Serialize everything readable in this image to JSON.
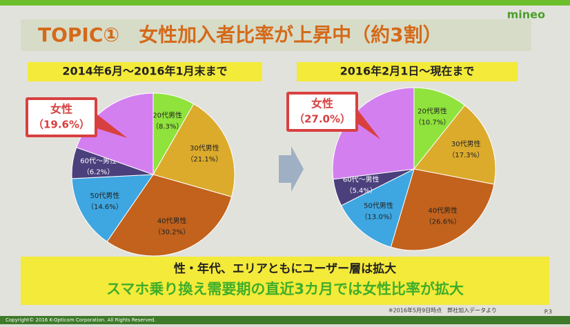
{
  "brand": "mineo",
  "title": "TOPIC①　女性加入者比率が上昇中（約3割）",
  "chart_data": [
    {
      "type": "pie",
      "subtitle": "2014年6月～2016年1月末まで",
      "categories": [
        "20代男性",
        "30代男性",
        "40代男性",
        "50代男性",
        "60代～男性",
        "女性"
      ],
      "values": [
        8.3,
        21.1,
        30.2,
        14.6,
        6.2,
        19.6
      ],
      "value_labels": [
        "（8.3%）",
        "（21.1%）",
        "（30.2%）",
        "（14.6%）",
        "（6.2%）",
        "（19.6%）"
      ],
      "colors": [
        "#8fe33c",
        "#dcab2c",
        "#c2621c",
        "#3ea6e0",
        "#4b3f7c",
        "#d47ff0"
      ]
    },
    {
      "type": "pie",
      "subtitle": "2016年2月1日～現在まで",
      "categories": [
        "20代男性",
        "30代男性",
        "40代男性",
        "50代男性",
        "60代～男性",
        "女性"
      ],
      "values": [
        10.7,
        17.3,
        26.6,
        13.0,
        5.4,
        27.0
      ],
      "value_labels": [
        "（10.7%）",
        "（17.3%）",
        "（26.6%）",
        "（13.0%）",
        "（5.4%）",
        "（27.0%）"
      ],
      "colors": [
        "#8fe33c",
        "#dcab2c",
        "#c2621c",
        "#3ea6e0",
        "#4b3f7c",
        "#d47ff0"
      ]
    }
  ],
  "summary": [
    "性・年代、エリアともにユーザー層は拡大",
    "スマホ乗り換え需要期の直近3カ月では女性比率が拡大"
  ],
  "note": "※2016年5月9日時点　弊社加入データより",
  "page": "P.3",
  "copyright": "Copyright© 2016 K-Opticom Corporation. All Rights Reserved."
}
